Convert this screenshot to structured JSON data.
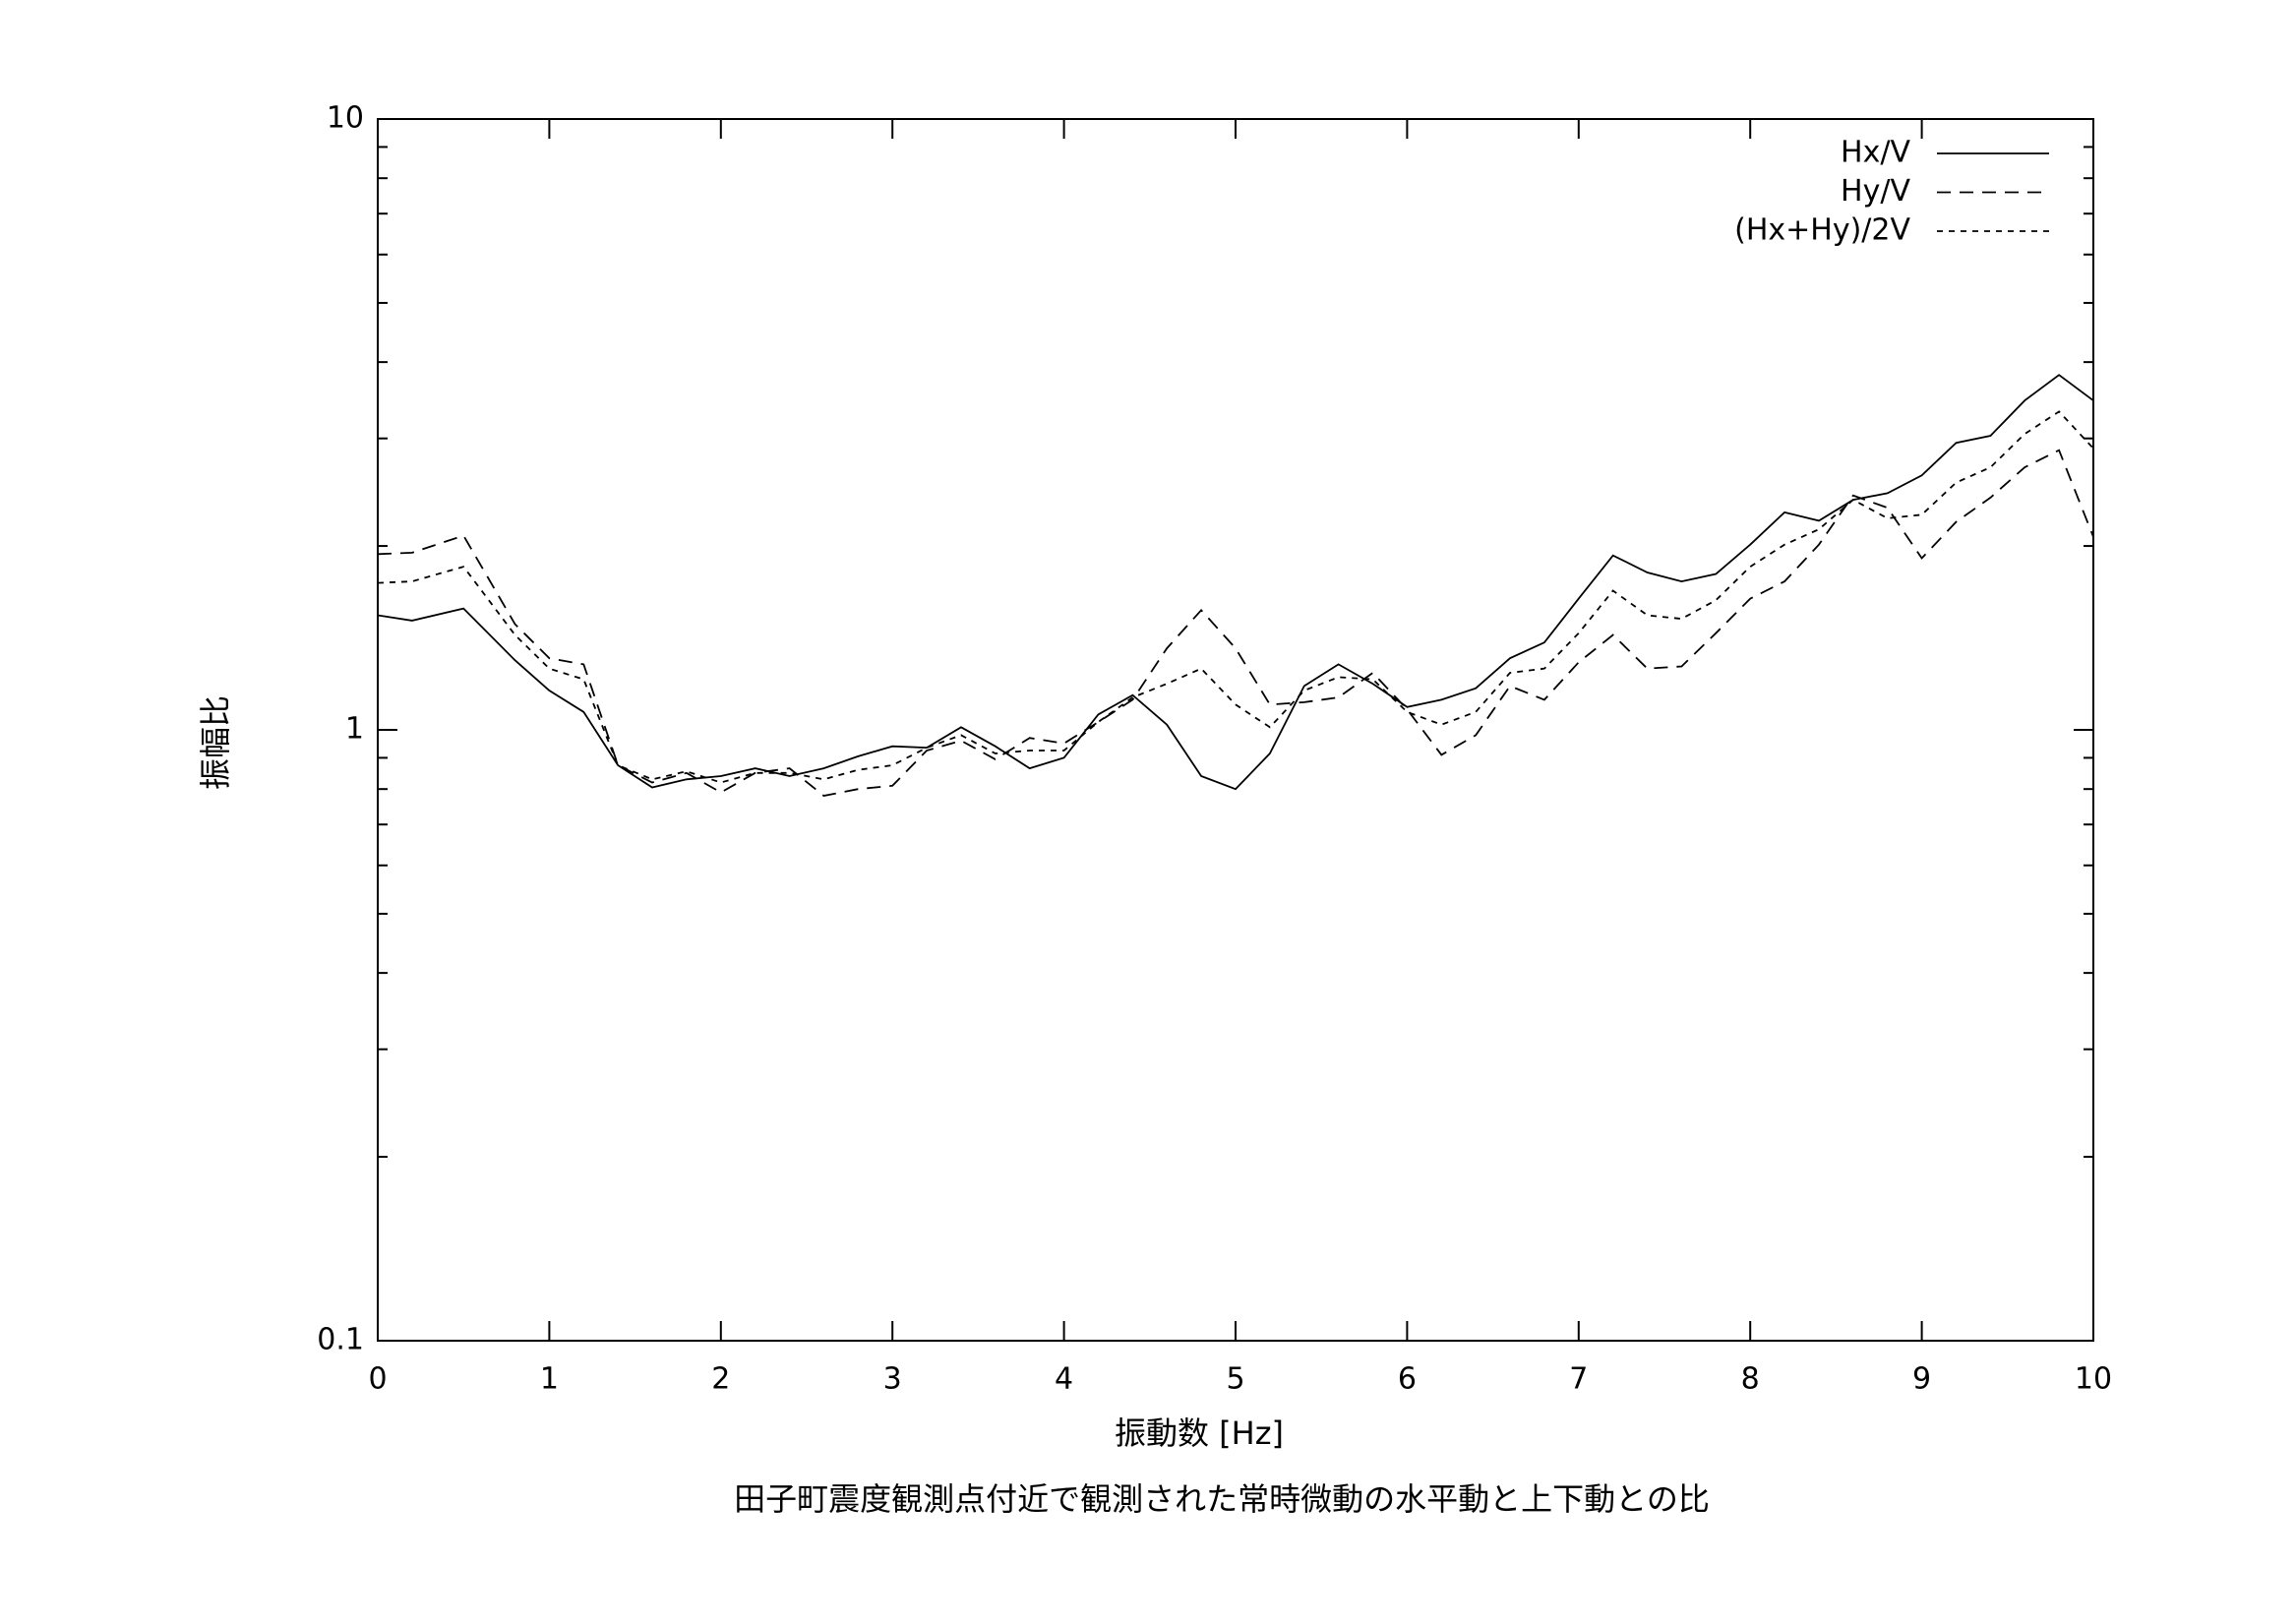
{
  "chart_data": {
    "type": "line",
    "title": "田子町震度観測点付近で観測された常時微動の水平動と上下動との比",
    "x_label": "振動数 [Hz]",
    "y_label": "振幅比",
    "log_y": true,
    "legend": "top-right",
    "xlim": [
      0,
      10
    ],
    "xticks": [
      0,
      1,
      2,
      3,
      4,
      5,
      6,
      7,
      8,
      9,
      10
    ],
    "ylim": [
      0.1,
      10
    ],
    "yticks": [
      0.1,
      1,
      10
    ],
    "x": [
      0,
      0.2,
      0.5,
      0.8,
      1.0,
      1.2,
      1.4,
      1.6,
      1.8,
      2.0,
      2.2,
      2.4,
      2.6,
      2.8,
      3.0,
      3.2,
      3.4,
      3.6,
      3.8,
      4.0,
      4.2,
      4.4,
      4.6,
      4.8,
      5.0,
      5.2,
      5.4,
      5.6,
      5.8,
      6.0,
      6.2,
      6.4,
      6.6,
      6.8,
      7.0,
      7.2,
      7.4,
      7.6,
      7.8,
      8.0,
      8.2,
      8.4,
      8.6,
      8.8,
      9.0,
      9.2,
      9.4,
      9.6,
      9.8,
      10
    ],
    "series": [
      {
        "name": "Hx/V",
        "color": "#000000",
        "dash": "solid",
        "values": [
          1.54,
          1.51,
          1.58,
          1.3,
          1.16,
          1.07,
          0.875,
          0.805,
          0.83,
          0.84,
          0.865,
          0.84,
          0.865,
          0.905,
          0.94,
          0.935,
          1.01,
          0.94,
          0.865,
          0.9,
          1.06,
          1.14,
          1.02,
          0.84,
          0.8,
          0.915,
          1.18,
          1.28,
          1.19,
          1.09,
          1.12,
          1.17,
          1.31,
          1.39,
          1.64,
          1.93,
          1.81,
          1.75,
          1.8,
          2.01,
          2.27,
          2.2,
          2.38,
          2.44,
          2.61,
          2.95,
          3.03,
          3.46,
          3.81,
          3.46
        ]
      },
      {
        "name": "Hy/V",
        "color": "#000000",
        "dash": "long",
        "values": [
          1.94,
          1.95,
          2.08,
          1.49,
          1.31,
          1.28,
          0.875,
          0.82,
          0.85,
          0.79,
          0.85,
          0.865,
          0.78,
          0.8,
          0.81,
          0.925,
          0.96,
          0.895,
          0.97,
          0.95,
          1.03,
          1.12,
          1.36,
          1.57,
          1.36,
          1.1,
          1.11,
          1.13,
          1.24,
          1.08,
          0.91,
          0.98,
          1.18,
          1.12,
          1.29,
          1.43,
          1.26,
          1.27,
          1.44,
          1.64,
          1.75,
          2.01,
          2.42,
          2.31,
          1.91,
          2.19,
          2.4,
          2.69,
          2.87,
          2.07
        ]
      },
      {
        "name": "(Hx+Hy)/2V",
        "color": "#000000",
        "dash": "short",
        "values": [
          1.74,
          1.75,
          1.85,
          1.43,
          1.26,
          1.21,
          0.875,
          0.83,
          0.855,
          0.82,
          0.85,
          0.85,
          0.83,
          0.86,
          0.875,
          0.935,
          0.98,
          0.915,
          0.925,
          0.925,
          1.03,
          1.13,
          1.19,
          1.26,
          1.1,
          1.01,
          1.16,
          1.22,
          1.21,
          1.07,
          1.02,
          1.07,
          1.24,
          1.26,
          1.44,
          1.69,
          1.54,
          1.52,
          1.63,
          1.85,
          2.01,
          2.13,
          2.38,
          2.22,
          2.25,
          2.54,
          2.69,
          3.05,
          3.32,
          2.89
        ]
      }
    ]
  }
}
